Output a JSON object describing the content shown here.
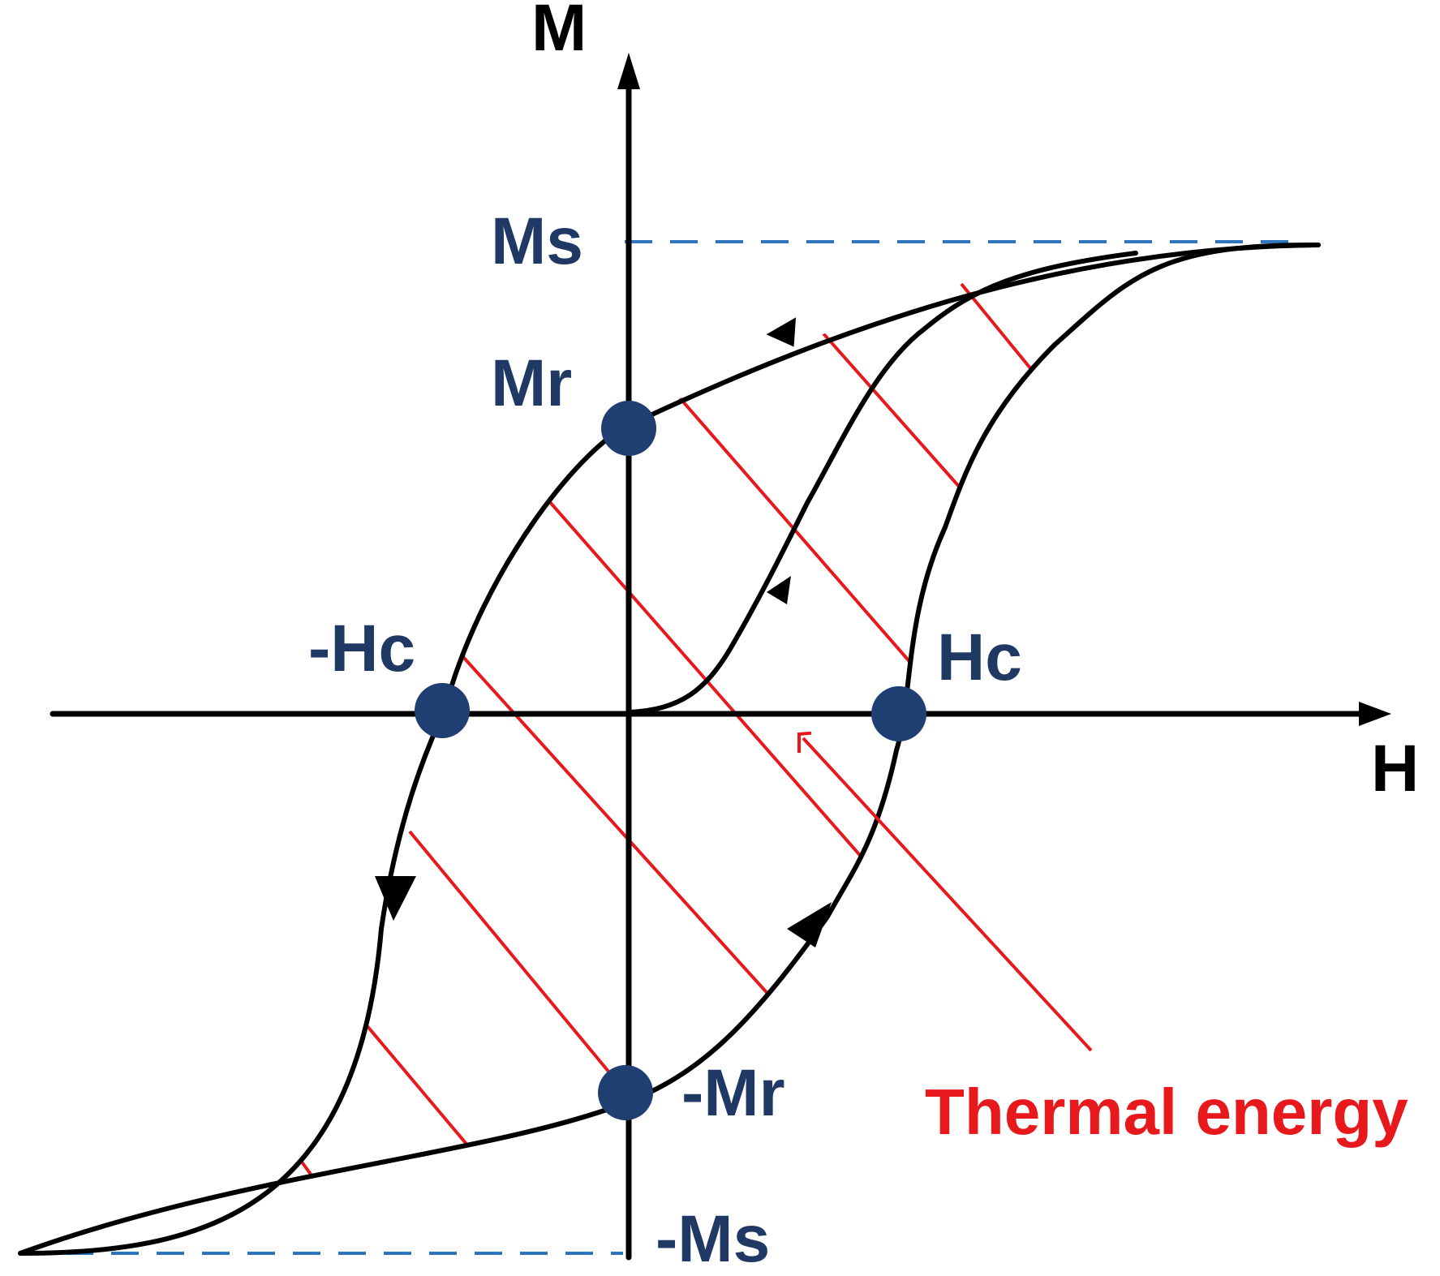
{
  "axes": {
    "x_label": "H",
    "y_label": "M"
  },
  "points": {
    "ms": "Ms",
    "mr": "Mr",
    "neg_hc": "-Hc",
    "hc": "Hc",
    "neg_mr": "-Mr",
    "neg_ms": "-Ms"
  },
  "annotation": {
    "label": "Thermal energy"
  },
  "colors": {
    "axes": "#000000",
    "curve": "#000000",
    "points": "#1f3f72",
    "point_labels": "#1f3864",
    "hatch": "#e8191c",
    "saturation_lines": "#2e75c0",
    "annotation": "#e8191c"
  }
}
